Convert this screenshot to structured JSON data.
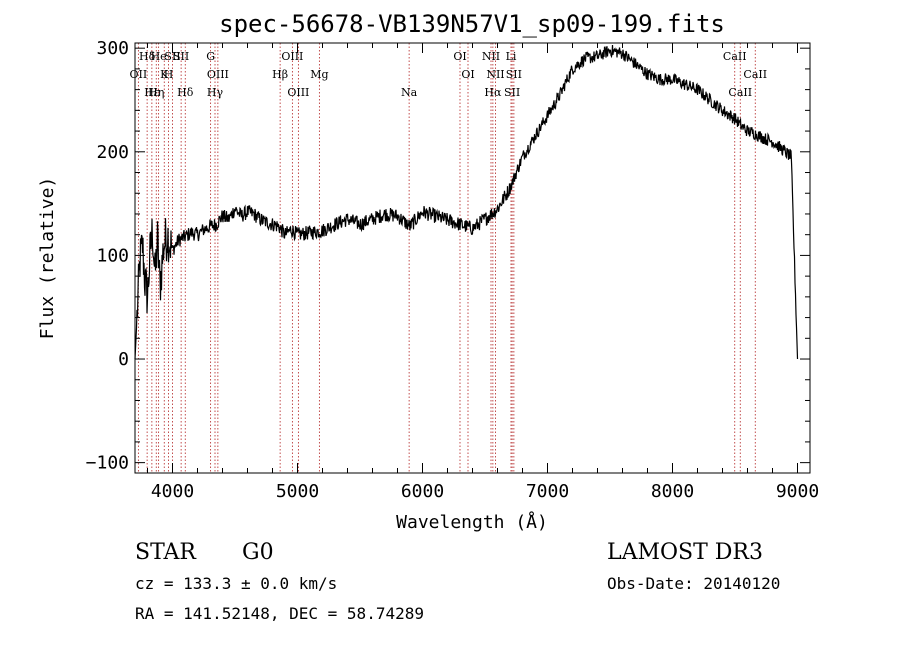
{
  "chart_data": {
    "type": "line",
    "title": "spec-56678-VB139N57V1_sp09-199.fits",
    "xlabel": "Wavelength (Å)",
    "ylabel": "Flux (relative)",
    "xlim": [
      3700,
      9100
    ],
    "ylim": [
      -110,
      305
    ],
    "xticks": [
      4000,
      5000,
      6000,
      7000,
      8000,
      9000
    ],
    "yticks": [
      -100,
      0,
      100,
      200,
      300
    ],
    "grid": false,
    "series": [
      {
        "name": "flux",
        "x": [
          3700,
          3720,
          3740,
          3760,
          3780,
          3800,
          3820,
          3840,
          3860,
          3880,
          3900,
          3930,
          3960,
          4000,
          4050,
          4100,
          4150,
          4200,
          4250,
          4300,
          4350,
          4400,
          4450,
          4500,
          4550,
          4600,
          4650,
          4700,
          4750,
          4800,
          4850,
          4900,
          4950,
          5000,
          5100,
          5200,
          5300,
          5400,
          5500,
          5600,
          5700,
          5800,
          5900,
          6000,
          6100,
          6200,
          6300,
          6400,
          6500,
          6550,
          6600,
          6650,
          6700,
          6750,
          6800,
          6850,
          6900,
          6950,
          7000,
          7050,
          7100,
          7150,
          7200,
          7300,
          7400,
          7500,
          7600,
          7700,
          7800,
          7900,
          8000,
          8100,
          8200,
          8300,
          8400,
          8500,
          8550,
          8600,
          8650,
          8700,
          8750,
          8800,
          8850,
          8900,
          8950,
          9000
        ],
        "values": [
          0,
          50,
          95,
          110,
          75,
          60,
          100,
          125,
          80,
          115,
          70,
          110,
          120,
          105,
          115,
          118,
          122,
          120,
          125,
          128,
          130,
          138,
          135,
          145,
          138,
          142,
          140,
          135,
          132,
          130,
          128,
          120,
          125,
          120,
          122,
          124,
          130,
          135,
          130,
          135,
          140,
          138,
          128,
          142,
          138,
          134,
          130,
          126,
          135,
          140,
          145,
          155,
          165,
          180,
          195,
          205,
          215,
          225,
          235,
          245,
          255,
          268,
          280,
          290,
          292,
          298,
          295,
          285,
          275,
          270,
          270,
          265,
          260,
          250,
          240,
          232,
          225,
          220,
          218,
          215,
          212,
          210,
          205,
          200,
          195,
          0
        ],
        "color": "#000000"
      }
    ],
    "lines": [
      {
        "label": "Hδ",
        "x": 3797
      },
      {
        "label": "OII",
        "x": 3727
      },
      {
        "label": "Hε",
        "x": 3835
      },
      {
        "label": "He",
        "x": 3889
      },
      {
        "label": "K",
        "x": 3934
      },
      {
        "label": "Hη",
        "x": 3870
      },
      {
        "label": "SII",
        "x": 4000
      },
      {
        "label": "H",
        "x": 3968
      },
      {
        "label": "Hδ",
        "x": 4102
      },
      {
        "label": "SII",
        "x": 4069
      },
      {
        "label": "OIII",
        "x": 4363
      },
      {
        "label": "Hγ",
        "x": 4340
      },
      {
        "label": "G",
        "x": 4305
      },
      {
        "label": "Hβ",
        "x": 4861
      },
      {
        "label": "OIII",
        "x": 5007
      },
      {
        "label": "OIII",
        "x": 4959
      },
      {
        "label": "Mg",
        "x": 5175
      },
      {
        "label": "Na",
        "x": 5893
      },
      {
        "label": "OI",
        "x": 6300
      },
      {
        "label": "OI",
        "x": 6364
      },
      {
        "label": "Hα",
        "x": 6563
      },
      {
        "label": "NII",
        "x": 6548
      },
      {
        "label": "NII",
        "x": 6584
      },
      {
        "label": "SII",
        "x": 6717
      },
      {
        "label": "Li",
        "x": 6708
      },
      {
        "label": "SII",
        "x": 6731
      },
      {
        "label": "CaII",
        "x": 8542
      },
      {
        "label": "CaII",
        "x": 8498
      },
      {
        "label": "CaII",
        "x": 8662
      }
    ]
  },
  "info": {
    "class": "STAR",
    "subclass": "G0",
    "survey": "LAMOST DR3",
    "cz": "cz = 133.3 ± 0.0 km/s",
    "obs_date": "Obs-Date: 20140120",
    "coords": "RA = 141.52148, DEC =  58.74289"
  }
}
